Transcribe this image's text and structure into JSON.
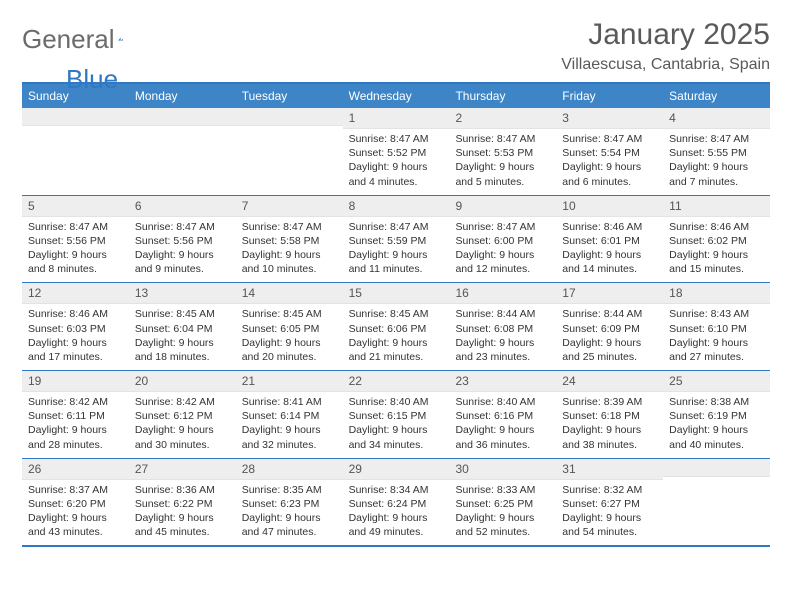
{
  "brand": {
    "part1": "General",
    "part2": "Blue"
  },
  "header": {
    "month": "January 2025",
    "location": "Villaescusa, Cantabria, Spain"
  },
  "colors": {
    "accent": "#3d85c6",
    "border": "#2f78c4",
    "daynum_bg": "#eeeeee",
    "text": "#333333"
  },
  "dayNames": [
    "Sunday",
    "Monday",
    "Tuesday",
    "Wednesday",
    "Thursday",
    "Friday",
    "Saturday"
  ],
  "weeks": [
    [
      null,
      null,
      null,
      {
        "n": "1",
        "sr": "8:47 AM",
        "ss": "5:52 PM",
        "dl": "9 hours and 4 minutes."
      },
      {
        "n": "2",
        "sr": "8:47 AM",
        "ss": "5:53 PM",
        "dl": "9 hours and 5 minutes."
      },
      {
        "n": "3",
        "sr": "8:47 AM",
        "ss": "5:54 PM",
        "dl": "9 hours and 6 minutes."
      },
      {
        "n": "4",
        "sr": "8:47 AM",
        "ss": "5:55 PM",
        "dl": "9 hours and 7 minutes."
      }
    ],
    [
      {
        "n": "5",
        "sr": "8:47 AM",
        "ss": "5:56 PM",
        "dl": "9 hours and 8 minutes."
      },
      {
        "n": "6",
        "sr": "8:47 AM",
        "ss": "5:56 PM",
        "dl": "9 hours and 9 minutes."
      },
      {
        "n": "7",
        "sr": "8:47 AM",
        "ss": "5:58 PM",
        "dl": "9 hours and 10 minutes."
      },
      {
        "n": "8",
        "sr": "8:47 AM",
        "ss": "5:59 PM",
        "dl": "9 hours and 11 minutes."
      },
      {
        "n": "9",
        "sr": "8:47 AM",
        "ss": "6:00 PM",
        "dl": "9 hours and 12 minutes."
      },
      {
        "n": "10",
        "sr": "8:46 AM",
        "ss": "6:01 PM",
        "dl": "9 hours and 14 minutes."
      },
      {
        "n": "11",
        "sr": "8:46 AM",
        "ss": "6:02 PM",
        "dl": "9 hours and 15 minutes."
      }
    ],
    [
      {
        "n": "12",
        "sr": "8:46 AM",
        "ss": "6:03 PM",
        "dl": "9 hours and 17 minutes."
      },
      {
        "n": "13",
        "sr": "8:45 AM",
        "ss": "6:04 PM",
        "dl": "9 hours and 18 minutes."
      },
      {
        "n": "14",
        "sr": "8:45 AM",
        "ss": "6:05 PM",
        "dl": "9 hours and 20 minutes."
      },
      {
        "n": "15",
        "sr": "8:45 AM",
        "ss": "6:06 PM",
        "dl": "9 hours and 21 minutes."
      },
      {
        "n": "16",
        "sr": "8:44 AM",
        "ss": "6:08 PM",
        "dl": "9 hours and 23 minutes."
      },
      {
        "n": "17",
        "sr": "8:44 AM",
        "ss": "6:09 PM",
        "dl": "9 hours and 25 minutes."
      },
      {
        "n": "18",
        "sr": "8:43 AM",
        "ss": "6:10 PM",
        "dl": "9 hours and 27 minutes."
      }
    ],
    [
      {
        "n": "19",
        "sr": "8:42 AM",
        "ss": "6:11 PM",
        "dl": "9 hours and 28 minutes."
      },
      {
        "n": "20",
        "sr": "8:42 AM",
        "ss": "6:12 PM",
        "dl": "9 hours and 30 minutes."
      },
      {
        "n": "21",
        "sr": "8:41 AM",
        "ss": "6:14 PM",
        "dl": "9 hours and 32 minutes."
      },
      {
        "n": "22",
        "sr": "8:40 AM",
        "ss": "6:15 PM",
        "dl": "9 hours and 34 minutes."
      },
      {
        "n": "23",
        "sr": "8:40 AM",
        "ss": "6:16 PM",
        "dl": "9 hours and 36 minutes."
      },
      {
        "n": "24",
        "sr": "8:39 AM",
        "ss": "6:18 PM",
        "dl": "9 hours and 38 minutes."
      },
      {
        "n": "25",
        "sr": "8:38 AM",
        "ss": "6:19 PM",
        "dl": "9 hours and 40 minutes."
      }
    ],
    [
      {
        "n": "26",
        "sr": "8:37 AM",
        "ss": "6:20 PM",
        "dl": "9 hours and 43 minutes."
      },
      {
        "n": "27",
        "sr": "8:36 AM",
        "ss": "6:22 PM",
        "dl": "9 hours and 45 minutes."
      },
      {
        "n": "28",
        "sr": "8:35 AM",
        "ss": "6:23 PM",
        "dl": "9 hours and 47 minutes."
      },
      {
        "n": "29",
        "sr": "8:34 AM",
        "ss": "6:24 PM",
        "dl": "9 hours and 49 minutes."
      },
      {
        "n": "30",
        "sr": "8:33 AM",
        "ss": "6:25 PM",
        "dl": "9 hours and 52 minutes."
      },
      {
        "n": "31",
        "sr": "8:32 AM",
        "ss": "6:27 PM",
        "dl": "9 hours and 54 minutes."
      },
      null
    ]
  ]
}
